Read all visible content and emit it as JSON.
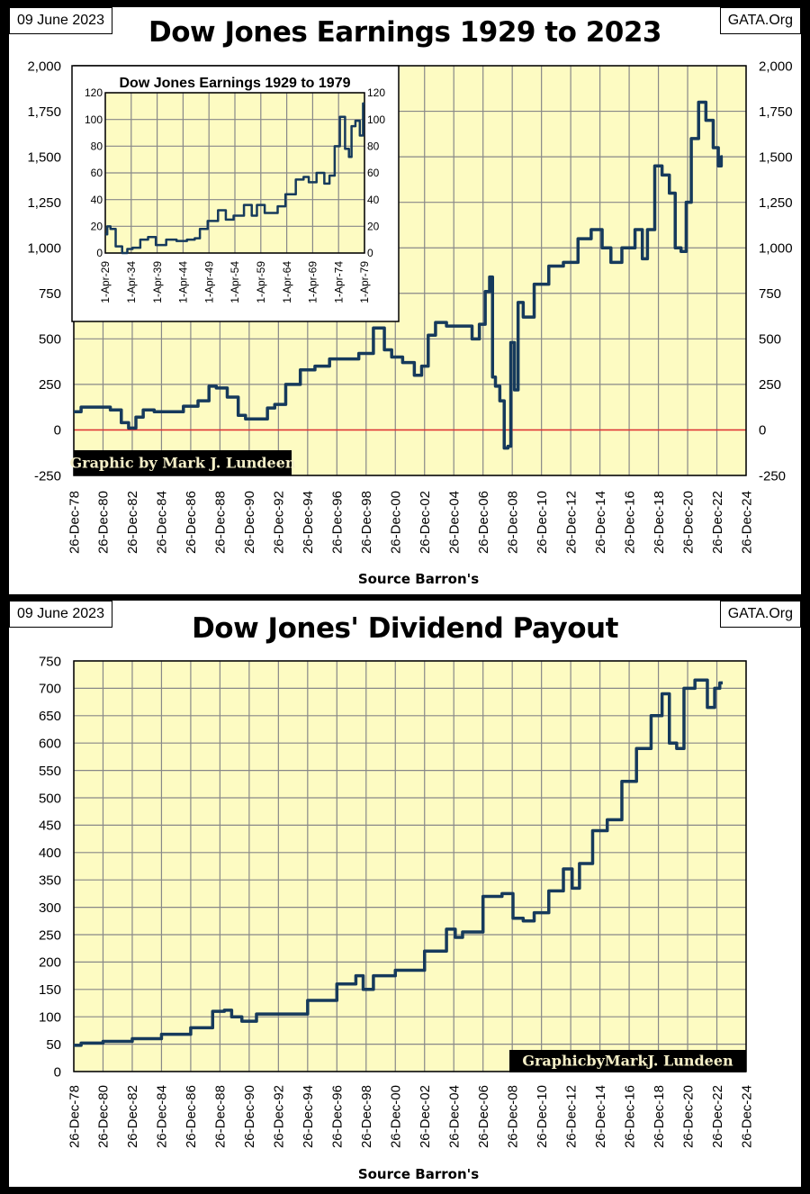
{
  "colors": {
    "plot_bg": "#fdfbc2",
    "line": "#163a5c",
    "grid": "#888888",
    "zero_line": "#e03030",
    "signature_bg": "#000000",
    "signature_text": "#f5efc8"
  },
  "top": {
    "date": "09 June 2023",
    "site": "GATA.Org",
    "title": "Dow Jones Earnings 1929 to 2023",
    "source": "Source Barron's",
    "signature": "Graphic by Mark J. Lundeen"
  },
  "bottom": {
    "date": "09 June 2023",
    "site": "GATA.Org",
    "title": "Dow Jones' Dividend Payout",
    "source": "Source Barron's",
    "signature": "GraphicbyMarkJ. Lundeen"
  },
  "chart_data": [
    {
      "type": "line",
      "title": "Dow Jones Earnings 1929 to 2023",
      "xlabel": "Source Barron's",
      "ylabel": "",
      "xlim": [
        1979,
        2025
      ],
      "ylim": [
        -250,
        2000
      ],
      "yticks": [
        -250,
        0,
        250,
        500,
        750,
        1000,
        1250,
        1500,
        1750,
        2000
      ],
      "ytick_labels": [
        "-250",
        "0",
        "250",
        "500",
        "750",
        "1,000",
        "1,250",
        "1,500",
        "1,750",
        "2,000"
      ],
      "right_axis": true,
      "grid": true,
      "zero_line": true,
      "xtick_labels": [
        "26-Dec-78",
        "26-Dec-80",
        "26-Dec-82",
        "26-Dec-84",
        "26-Dec-86",
        "26-Dec-88",
        "26-Dec-90",
        "26-Dec-92",
        "26-Dec-94",
        "26-Dec-96",
        "26-Dec-98",
        "26-Dec-00",
        "26-Dec-02",
        "26-Dec-04",
        "26-Dec-06",
        "26-Dec-08",
        "26-Dec-10",
        "26-Dec-12",
        "26-Dec-14",
        "26-Dec-16",
        "26-Dec-18",
        "26-Dec-20",
        "26-Dec-22",
        "26-Dec-24"
      ],
      "x": [
        1979,
        1980,
        1981,
        1982,
        1982.5,
        1983,
        1983.5,
        1984,
        1985,
        1986,
        1987,
        1988,
        1988.5,
        1989,
        1990,
        1990.5,
        1991,
        1992,
        1992.5,
        1993,
        1994,
        1995,
        1996,
        1997,
        1998,
        1999,
        2000,
        2000.5,
        2001,
        2002,
        2002.6,
        2003,
        2003.5,
        2004,
        2005,
        2006,
        2006.5,
        2007,
        2007.3,
        2007.6,
        2007.7,
        2008,
        2008.3,
        2008.6,
        2008.8,
        2009.0,
        2009.3,
        2009.5,
        2010,
        2011,
        2012,
        2013,
        2014,
        2014.8,
        2015.5,
        2016,
        2017,
        2017.8,
        2018,
        2018.5,
        2019,
        2019.5,
        2020,
        2020.3,
        2020.8,
        2021,
        2021.5,
        2022,
        2022.5,
        2023,
        2023.2,
        2023.4
      ],
      "y": [
        100,
        125,
        125,
        110,
        40,
        10,
        70,
        110,
        100,
        100,
        130,
        160,
        240,
        230,
        180,
        80,
        60,
        60,
        120,
        140,
        250,
        330,
        350,
        390,
        390,
        420,
        560,
        440,
        400,
        370,
        300,
        350,
        520,
        590,
        570,
        570,
        500,
        580,
        760,
        840,
        290,
        240,
        160,
        -100,
        -90,
        480,
        220,
        700,
        620,
        800,
        900,
        920,
        1050,
        1100,
        1000,
        920,
        1000,
        1100,
        940,
        1100,
        1450,
        1400,
        1300,
        1000,
        980,
        1250,
        1600,
        1800,
        1700,
        1550,
        1450,
        1500
      ]
    },
    {
      "type": "line",
      "title": "Dow Jones Earnings 1929 to 1979",
      "inset": true,
      "xlim": [
        1929.25,
        1979.25
      ],
      "ylim": [
        0,
        120
      ],
      "yticks": [
        0,
        20,
        40,
        60,
        80,
        100,
        120
      ],
      "ytick_labels": [
        "0",
        "20",
        "40",
        "60",
        "80",
        "100",
        "120"
      ],
      "right_axis": true,
      "grid": true,
      "xtick_labels": [
        "1-Apr-29",
        "1-Apr-34",
        "1-Apr-39",
        "1-Apr-44",
        "1-Apr-49",
        "1-Apr-54",
        "1-Apr-59",
        "1-Apr-64",
        "1-Apr-69",
        "1-Apr-74",
        "1-Apr-79"
      ],
      "x": [
        1929.25,
        1930,
        1930.5,
        1932,
        1933,
        1934,
        1935,
        1937,
        1938,
        1940,
        1942,
        1944,
        1946,
        1947,
        1948,
        1950,
        1952,
        1953,
        1955,
        1957,
        1958,
        1959,
        1961,
        1962,
        1963,
        1965,
        1967,
        1968,
        1969,
        1971,
        1972,
        1973,
        1974,
        1975,
        1976,
        1976.5,
        1977,
        1978,
        1978.7,
        1979.25
      ],
      "y": [
        14,
        20,
        18,
        5,
        0,
        3,
        4,
        10,
        12,
        6,
        10,
        9,
        10,
        11,
        18,
        24,
        32,
        25,
        28,
        36,
        28,
        36,
        30,
        30,
        35,
        44,
        55,
        57,
        53,
        60,
        52,
        58,
        80,
        102,
        78,
        72,
        95,
        99,
        88,
        112
      ]
    },
    {
      "type": "line",
      "title": "Dow Jones' Dividend Payout",
      "xlabel": "Source Barron's",
      "ylabel": "",
      "xlim": [
        1979,
        2025
      ],
      "ylim": [
        0,
        750
      ],
      "yticks": [
        0,
        50,
        100,
        150,
        200,
        250,
        300,
        350,
        400,
        450,
        500,
        550,
        600,
        650,
        700,
        750
      ],
      "ytick_labels": [
        "0",
        "50",
        "100",
        "150",
        "200",
        "250",
        "300",
        "350",
        "400",
        "450",
        "500",
        "550",
        "600",
        "650",
        "700",
        "750"
      ],
      "right_axis": false,
      "grid": true,
      "xtick_labels": [
        "26-Dec-78",
        "26-Dec-80",
        "26-Dec-82",
        "26-Dec-84",
        "26-Dec-86",
        "26-Dec-88",
        "26-Dec-90",
        "26-Dec-92",
        "26-Dec-94",
        "26-Dec-96",
        "26-Dec-98",
        "26-Dec-00",
        "26-Dec-02",
        "26-Dec-04",
        "26-Dec-06",
        "26-Dec-08",
        "26-Dec-10",
        "26-Dec-12",
        "26-Dec-14",
        "26-Dec-16",
        "26-Dec-18",
        "26-Dec-20",
        "26-Dec-22",
        "26-Dec-24"
      ],
      "x": [
        1979,
        1980,
        1982,
        1984,
        1986,
        1988,
        1989,
        1989.6,
        1990,
        1991,
        1992,
        1994,
        1996,
        1998,
        1998.6,
        1999,
        2000,
        2002,
        2004,
        2005,
        2005.2,
        2006,
        2008,
        2008.6,
        2009.5,
        2010,
        2011,
        2012,
        2013,
        2013.2,
        2014,
        2015,
        2016,
        2017,
        2018,
        2019,
        2019.5,
        2020,
        2020.5,
        2021,
        2022,
        2022.7,
        2023,
        2023.4
      ],
      "y": [
        48,
        52,
        55,
        60,
        68,
        80,
        110,
        112,
        100,
        92,
        105,
        105,
        130,
        160,
        175,
        150,
        175,
        185,
        220,
        260,
        245,
        255,
        320,
        325,
        280,
        275,
        290,
        330,
        370,
        335,
        380,
        440,
        460,
        530,
        590,
        650,
        690,
        600,
        590,
        700,
        715,
        665,
        700,
        710
      ]
    }
  ]
}
